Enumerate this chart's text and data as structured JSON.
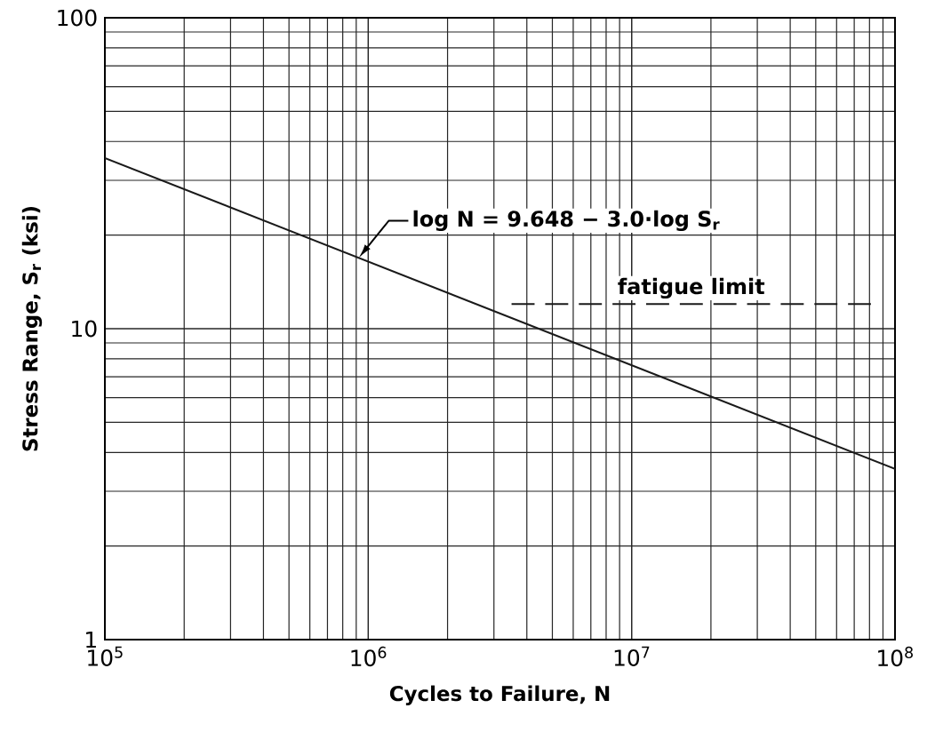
{
  "chart_data": {
    "type": "line",
    "xlabel": "Cycles to Failure, N",
    "ylabel": "Stress Range, S$_{r}$ (ksi)",
    "log": "xy",
    "grid": true,
    "xlim": [
      100000,
      100000000
    ],
    "ylim": [
      1,
      100
    ],
    "xticks": [
      {
        "value": 100000,
        "label": "10$^{5}$"
      },
      {
        "value": 1000000,
        "label": "10$^{6}$"
      },
      {
        "value": 10000000,
        "label": "10$^{7}$"
      },
      {
        "value": 100000000,
        "label": "10$^{8}$"
      }
    ],
    "yticks": [
      1,
      10,
      100
    ],
    "series": [
      {
        "color": "#1a1a1a",
        "line_style": "solid",
        "x": [
          100000,
          100000000
        ],
        "values": [
          35.4,
          3.54
        ]
      },
      {
        "name": "fatigue limit",
        "color": "#1a1a1a",
        "line_style": "dashed",
        "x": [
          3500000,
          81000000
        ],
        "values": [
          12,
          12
        ]
      }
    ],
    "annotations": [
      {
        "text": "log N = 9.648 − 3.0·log S$_{r}$",
        "x": 920000,
        "y": 16.9
      }
    ]
  }
}
